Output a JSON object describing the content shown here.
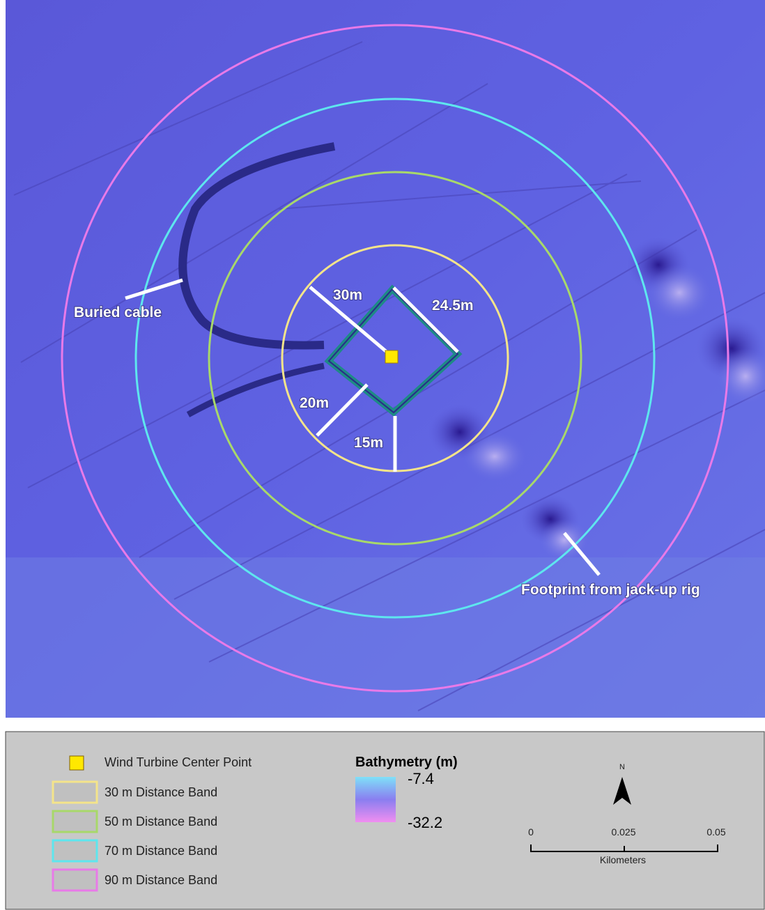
{
  "map": {
    "annotations": {
      "buried_cable": "Buried cable",
      "footprint": "Footprint from jack-up rig",
      "r30": "30m",
      "r24_5": "24.5m",
      "r20": "20m",
      "r15": "15m"
    }
  },
  "legend": {
    "items": [
      "Wind Turbine Center Point",
      "30 m Distance Band",
      "50 m Distance Band",
      "70 m Distance Band",
      "90 m Distance Band"
    ],
    "bathymetry": {
      "title": "Bathymetry (m)",
      "high": "-7.4",
      "low": "-32.2"
    },
    "north": "N",
    "scale_bar": {
      "ticks": [
        "0",
        "0.025",
        "0.05"
      ],
      "unit": "Kilometers"
    }
  }
}
